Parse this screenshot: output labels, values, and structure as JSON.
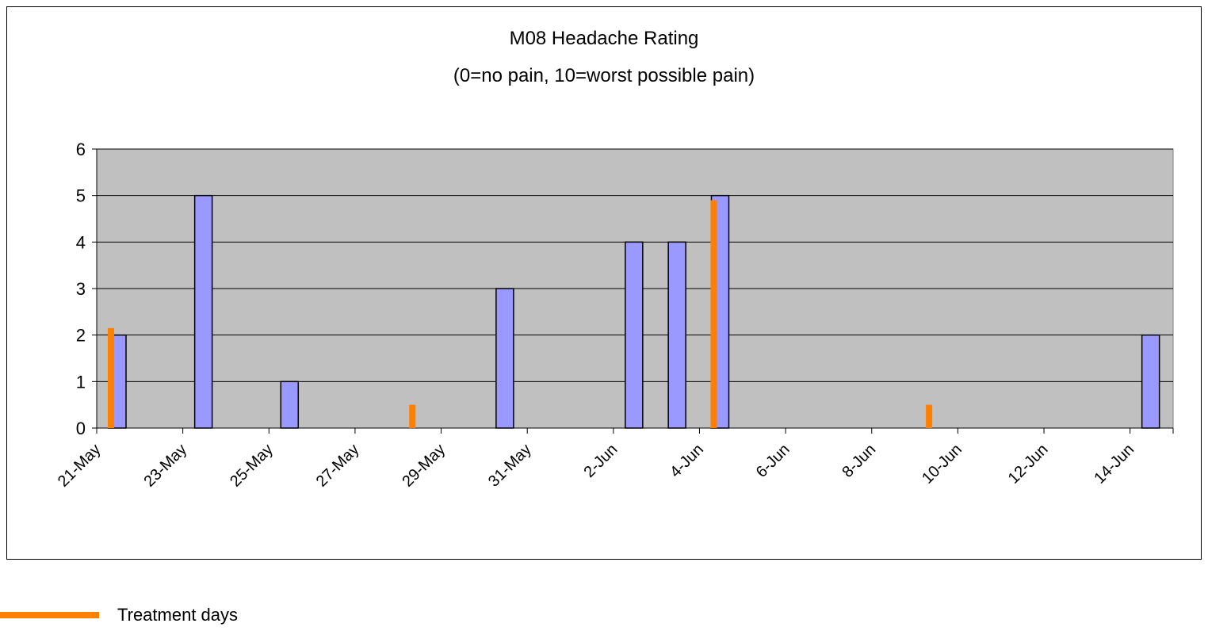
{
  "chart_data": {
    "type": "bar",
    "title": "M08 Headache Rating",
    "subtitle": "(0=no pain, 10=worst possible pain)",
    "categories": [
      "21-May",
      null,
      "23-May",
      null,
      "25-May",
      null,
      "27-May",
      null,
      "29-May",
      null,
      "31-May",
      null,
      "2-Jun",
      null,
      "4-Jun",
      null,
      "6-Jun",
      null,
      "8-Jun",
      null,
      "10-Jun",
      null,
      "12-Jun",
      null,
      "14-Jun"
    ],
    "series": [
      {
        "color": "#9999ff",
        "values": [
          2,
          null,
          5,
          null,
          1,
          null,
          null,
          null,
          null,
          3,
          null,
          null,
          4,
          4,
          5,
          null,
          null,
          null,
          null,
          null,
          null,
          null,
          null,
          null,
          2
        ]
      },
      {
        "name": "Treatment days",
        "color": "#ff8000",
        "values": [
          2.15,
          null,
          null,
          null,
          null,
          null,
          null,
          0.5,
          null,
          null,
          null,
          null,
          null,
          null,
          4.9,
          null,
          null,
          null,
          null,
          0.5,
          null,
          null,
          null,
          null,
          null
        ]
      }
    ],
    "ylim": [
      0,
      6
    ],
    "yticks": [
      0,
      1,
      2,
      3,
      4,
      5,
      6
    ],
    "grid": true,
    "legend": "bottom-left"
  }
}
